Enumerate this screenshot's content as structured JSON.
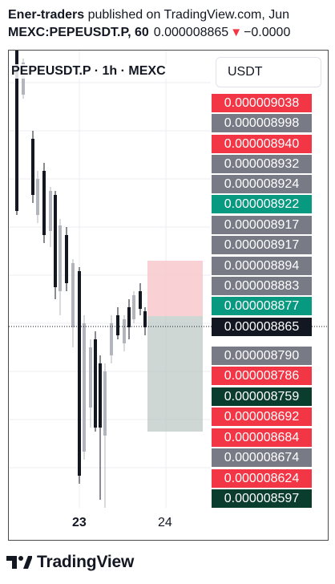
{
  "header": {
    "author": "Ener-traders",
    "published_text": "published on TradingView.com, Jun",
    "symbol": "MEXC:PEPEUSDT.P, 60",
    "last_price": "0.000008865",
    "change_arrow": "▼",
    "change": "−0.0000"
  },
  "chart": {
    "legend": "PEPEUSDT.P · 1h · MEXC",
    "currency": "USDT",
    "price_labels": [
      {
        "text": "0.000009038",
        "color": "#f23645"
      },
      {
        "text": "0.000008998",
        "color": "#787b86"
      },
      {
        "text": "0.000008940",
        "color": "#f23645"
      },
      {
        "text": "0.000008932",
        "color": "#787b86"
      },
      {
        "text": "0.000008924",
        "color": "#787b86"
      },
      {
        "text": "0.000008922",
        "color": "#089981"
      },
      {
        "text": "0.000008917",
        "color": "#787b86"
      },
      {
        "text": "0.000008917",
        "color": "#787b86"
      },
      {
        "text": "0.000008894",
        "color": "#787b86"
      },
      {
        "text": "0.000008883",
        "color": "#787b86"
      },
      {
        "text": "0.000008877",
        "color": "#089981"
      },
      {
        "text": "0.000008865",
        "color": "#131722"
      },
      {
        "text": "0.000008790",
        "color": "#787b86"
      },
      {
        "text": "0.000008786",
        "color": "#f23645"
      },
      {
        "text": "0.000008759",
        "color": "#0b3d2e"
      },
      {
        "text": "0.000008692",
        "color": "#f23645"
      },
      {
        "text": "0.000008684",
        "color": "#f23645"
      },
      {
        "text": "0.000008674",
        "color": "#787b86"
      },
      {
        "text": "0.000008624",
        "color": "#f23645"
      },
      {
        "text": "0.000008597",
        "color": "#0b3d2e"
      }
    ],
    "time_labels": [
      {
        "text": "23",
        "bold": true
      },
      {
        "text": "24",
        "bold": false
      }
    ],
    "risk_zone_color": "#f7c5c9",
    "reward_zone_color": "#b9c6c2"
  },
  "footer": {
    "brand": "TradingView"
  }
}
